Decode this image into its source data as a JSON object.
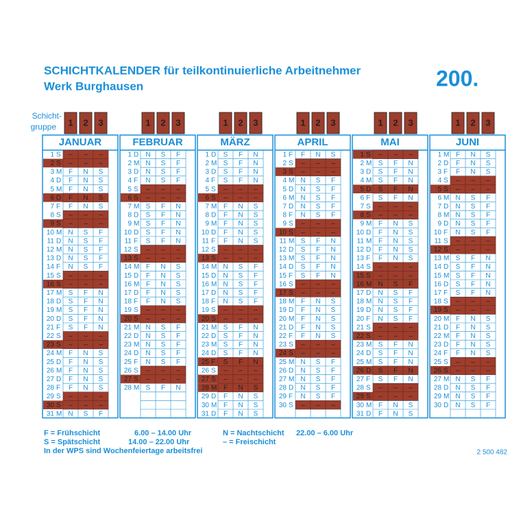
{
  "header": {
    "title": "SCHICHTKALENDER für teilkontinuierliche Arbeitnehmer",
    "subtitle": "Werk Burghausen",
    "year": "200.",
    "group_label": [
      "Schicht-",
      "gruppe"
    ],
    "groups": [
      "1",
      "2",
      "3"
    ]
  },
  "months": [
    {
      "name": "JANUAR",
      "rows": [
        [
          "1",
          "S",
          "–",
          "–",
          "–"
        ],
        [
          "2",
          "S",
          "–",
          "–",
          "–",
          true
        ],
        [
          "3",
          "M",
          "F",
          "N",
          "S"
        ],
        [
          "4",
          "D",
          "F",
          "N",
          "S"
        ],
        [
          "5",
          "M",
          "F",
          "N",
          "S"
        ],
        [
          "6",
          "D",
          "F",
          "N",
          "S",
          true
        ],
        [
          "7",
          "F",
          "F",
          "N",
          "S"
        ],
        [
          "8",
          "S",
          "–",
          "–",
          "–"
        ],
        [
          "9",
          "S",
          "–",
          "–",
          "–",
          true
        ],
        [
          "10",
          "M",
          "N",
          "S",
          "F"
        ],
        [
          "11",
          "D",
          "N",
          "S",
          "F"
        ],
        [
          "12",
          "M",
          "N",
          "S",
          "F"
        ],
        [
          "13",
          "D",
          "N",
          "S",
          "F"
        ],
        [
          "14",
          "F",
          "N",
          "S",
          "F"
        ],
        [
          "15",
          "S",
          "–",
          "–",
          "–"
        ],
        [
          "16",
          "S",
          "–",
          "–",
          "–",
          true
        ],
        [
          "17",
          "M",
          "S",
          "F",
          "N"
        ],
        [
          "18",
          "D",
          "S",
          "F",
          "N"
        ],
        [
          "19",
          "M",
          "S",
          "F",
          "N"
        ],
        [
          "20",
          "D",
          "S",
          "F",
          "N"
        ],
        [
          "21",
          "F",
          "S",
          "F",
          "N"
        ],
        [
          "22",
          "S",
          "–",
          "–",
          "–"
        ],
        [
          "23",
          "S",
          "–",
          "–",
          "–",
          true
        ],
        [
          "24",
          "M",
          "F",
          "N",
          "S"
        ],
        [
          "25",
          "D",
          "F",
          "N",
          "S"
        ],
        [
          "26",
          "M",
          "F",
          "N",
          "S"
        ],
        [
          "27",
          "D",
          "F",
          "N",
          "S"
        ],
        [
          "28",
          "F",
          "F",
          "N",
          "S"
        ],
        [
          "29",
          "S",
          "–",
          "–",
          "–"
        ],
        [
          "30",
          "S",
          "–",
          "–",
          "–",
          true
        ],
        [
          "31",
          "M",
          "N",
          "S",
          "F"
        ]
      ]
    },
    {
      "name": "FEBRUAR",
      "rows": [
        [
          "1",
          "D",
          "N",
          "S",
          "F"
        ],
        [
          "2",
          "M",
          "N",
          "S",
          "F"
        ],
        [
          "3",
          "D",
          "N",
          "S",
          "F"
        ],
        [
          "4",
          "F",
          "N",
          "S",
          "F"
        ],
        [
          "5",
          "S",
          "–",
          "–",
          "–"
        ],
        [
          "6",
          "S",
          "–",
          "–",
          "–",
          true
        ],
        [
          "7",
          "M",
          "S",
          "F",
          "N"
        ],
        [
          "8",
          "D",
          "S",
          "F",
          "N"
        ],
        [
          "9",
          "M",
          "S",
          "F",
          "N"
        ],
        [
          "10",
          "D",
          "S",
          "F",
          "N"
        ],
        [
          "11",
          "F",
          "S",
          "F",
          "N"
        ],
        [
          "12",
          "S",
          "–",
          "–",
          "–"
        ],
        [
          "13",
          "S",
          "–",
          "–",
          "–",
          true
        ],
        [
          "14",
          "M",
          "F",
          "N",
          "S"
        ],
        [
          "15",
          "D",
          "F",
          "N",
          "S"
        ],
        [
          "16",
          "M",
          "F",
          "N",
          "S"
        ],
        [
          "17",
          "D",
          "F",
          "N",
          "S"
        ],
        [
          "18",
          "F",
          "F",
          "N",
          "S"
        ],
        [
          "19",
          "S",
          "–",
          "–",
          "–"
        ],
        [
          "20",
          "S",
          "–",
          "–",
          "–",
          true
        ],
        [
          "21",
          "M",
          "N",
          "S",
          "F"
        ],
        [
          "22",
          "D",
          "N",
          "S",
          "F"
        ],
        [
          "23",
          "M",
          "N",
          "S",
          "F"
        ],
        [
          "24",
          "D",
          "N",
          "S",
          "F"
        ],
        [
          "25",
          "F",
          "N",
          "S",
          "F"
        ],
        [
          "26",
          "S",
          "–",
          "–",
          "–"
        ],
        [
          "27",
          "S",
          "–",
          "–",
          "–",
          true
        ],
        [
          "28",
          "M",
          "S",
          "F",
          "N"
        ]
      ]
    },
    {
      "name": "MÄRZ",
      "rows": [
        [
          "1",
          "D",
          "S",
          "F",
          "N"
        ],
        [
          "2",
          "M",
          "S",
          "F",
          "N"
        ],
        [
          "3",
          "D",
          "S",
          "F",
          "N"
        ],
        [
          "4",
          "F",
          "S",
          "F",
          "N"
        ],
        [
          "5",
          "S",
          "–",
          "–",
          "–"
        ],
        [
          "6",
          "S",
          "–",
          "–",
          "–",
          true
        ],
        [
          "7",
          "M",
          "F",
          "N",
          "S"
        ],
        [
          "8",
          "D",
          "F",
          "N",
          "S"
        ],
        [
          "9",
          "M",
          "F",
          "N",
          "S"
        ],
        [
          "10",
          "D",
          "F",
          "N",
          "S"
        ],
        [
          "11",
          "F",
          "F",
          "N",
          "S"
        ],
        [
          "12",
          "S",
          "–",
          "–",
          "–"
        ],
        [
          "13",
          "S",
          "–",
          "–",
          "–",
          true
        ],
        [
          "14",
          "M",
          "N",
          "S",
          "F"
        ],
        [
          "15",
          "D",
          "N",
          "S",
          "F"
        ],
        [
          "16",
          "M",
          "N",
          "S",
          "F"
        ],
        [
          "17",
          "D",
          "N",
          "S",
          "F"
        ],
        [
          "18",
          "F",
          "N",
          "S",
          "F"
        ],
        [
          "19",
          "S",
          "–",
          "–",
          "–"
        ],
        [
          "20",
          "S",
          "–",
          "–",
          "–",
          true
        ],
        [
          "21",
          "M",
          "S",
          "F",
          "N"
        ],
        [
          "22",
          "D",
          "S",
          "F",
          "N"
        ],
        [
          "23",
          "M",
          "S",
          "F",
          "N"
        ],
        [
          "24",
          "D",
          "S",
          "F",
          "N"
        ],
        [
          "25",
          "F",
          "S",
          "F",
          "N",
          true
        ],
        [
          "26",
          "S",
          "–",
          "–",
          "–"
        ],
        [
          "27",
          "S",
          "–",
          "–",
          "–",
          true
        ],
        [
          "28",
          "M",
          "F",
          "N",
          "S",
          true
        ],
        [
          "29",
          "D",
          "F",
          "N",
          "S"
        ],
        [
          "30",
          "M",
          "F",
          "N",
          "S"
        ],
        [
          "31",
          "D",
          "F",
          "N",
          "S"
        ]
      ]
    },
    {
      "name": "APRIL",
      "rows": [
        [
          "1",
          "F",
          "F",
          "N",
          "S"
        ],
        [
          "2",
          "S",
          "–",
          "–",
          "–"
        ],
        [
          "3",
          "S",
          "–",
          "–",
          "–",
          true
        ],
        [
          "4",
          "M",
          "N",
          "S",
          "F"
        ],
        [
          "5",
          "D",
          "N",
          "S",
          "F"
        ],
        [
          "6",
          "M",
          "N",
          "S",
          "F"
        ],
        [
          "7",
          "D",
          "N",
          "S",
          "F"
        ],
        [
          "8",
          "F",
          "N",
          "S",
          "F"
        ],
        [
          "9",
          "S",
          "–",
          "–",
          "–"
        ],
        [
          "10",
          "S",
          "–",
          "–",
          "–",
          true
        ],
        [
          "11",
          "M",
          "S",
          "F",
          "N"
        ],
        [
          "12",
          "D",
          "S",
          "F",
          "N"
        ],
        [
          "13",
          "M",
          "S",
          "F",
          "N"
        ],
        [
          "14",
          "D",
          "S",
          "F",
          "N"
        ],
        [
          "15",
          "F",
          "S",
          "F",
          "N"
        ],
        [
          "16",
          "S",
          "–",
          "–",
          "–"
        ],
        [
          "17",
          "S",
          "–",
          "–",
          "–",
          true
        ],
        [
          "18",
          "M",
          "F",
          "N",
          "S"
        ],
        [
          "19",
          "D",
          "F",
          "N",
          "S"
        ],
        [
          "20",
          "M",
          "F",
          "N",
          "S"
        ],
        [
          "21",
          "D",
          "F",
          "N",
          "S"
        ],
        [
          "22",
          "F",
          "F",
          "N",
          "S"
        ],
        [
          "23",
          "S",
          "–",
          "–",
          "–"
        ],
        [
          "24",
          "S",
          "–",
          "–",
          "–",
          true
        ],
        [
          "25",
          "M",
          "N",
          "S",
          "F"
        ],
        [
          "26",
          "D",
          "N",
          "S",
          "F"
        ],
        [
          "27",
          "M",
          "N",
          "S",
          "F"
        ],
        [
          "28",
          "D",
          "N",
          "S",
          "F"
        ],
        [
          "29",
          "F",
          "N",
          "S",
          "F"
        ],
        [
          "30",
          "S",
          "–",
          "–",
          "–"
        ]
      ]
    },
    {
      "name": "MAI",
      "rows": [
        [
          "1",
          "S",
          "–",
          "–",
          "–",
          true
        ],
        [
          "2",
          "M",
          "S",
          "F",
          "N"
        ],
        [
          "3",
          "D",
          "S",
          "F",
          "N"
        ],
        [
          "4",
          "M",
          "S",
          "F",
          "N"
        ],
        [
          "5",
          "D",
          "S",
          "F",
          "N",
          true
        ],
        [
          "6",
          "F",
          "S",
          "F",
          "N"
        ],
        [
          "7",
          "S",
          "–",
          "–",
          "–"
        ],
        [
          "8",
          "S",
          "–",
          "–",
          "–",
          true
        ],
        [
          "9",
          "M",
          "F",
          "N",
          "S"
        ],
        [
          "10",
          "D",
          "F",
          "N",
          "S"
        ],
        [
          "11",
          "M",
          "F",
          "N",
          "S"
        ],
        [
          "12",
          "D",
          "F",
          "N",
          "S"
        ],
        [
          "13",
          "F",
          "F",
          "N",
          "S"
        ],
        [
          "14",
          "S",
          "–",
          "–",
          "–"
        ],
        [
          "15",
          "S",
          "–",
          "–",
          "–",
          true
        ],
        [
          "16",
          "M",
          "N",
          "S",
          "F",
          true
        ],
        [
          "17",
          "D",
          "N",
          "S",
          "F"
        ],
        [
          "18",
          "M",
          "N",
          "S",
          "F"
        ],
        [
          "19",
          "D",
          "N",
          "S",
          "F"
        ],
        [
          "20",
          "F",
          "N",
          "S",
          "F"
        ],
        [
          "21",
          "S",
          "–",
          "–",
          "–"
        ],
        [
          "22",
          "S",
          "–",
          "–",
          "–",
          true
        ],
        [
          "23",
          "M",
          "S",
          "F",
          "N"
        ],
        [
          "24",
          "D",
          "S",
          "F",
          "N"
        ],
        [
          "25",
          "M",
          "S",
          "F",
          "N"
        ],
        [
          "26",
          "D",
          "S",
          "F",
          "N",
          true
        ],
        [
          "27",
          "F",
          "S",
          "F",
          "N"
        ],
        [
          "28",
          "S",
          "–",
          "–",
          "–"
        ],
        [
          "29",
          "S",
          "–",
          "–",
          "–",
          true
        ],
        [
          "30",
          "M",
          "F",
          "N",
          "S"
        ],
        [
          "31",
          "D",
          "F",
          "N",
          "S"
        ]
      ]
    },
    {
      "name": "JUNI",
      "rows": [
        [
          "1",
          "M",
          "F",
          "N",
          "S"
        ],
        [
          "2",
          "D",
          "F",
          "N",
          "S"
        ],
        [
          "3",
          "F",
          "F",
          "N",
          "S"
        ],
        [
          "4",
          "S",
          "–",
          "–",
          "–"
        ],
        [
          "5",
          "S",
          "–",
          "–",
          "–",
          true
        ],
        [
          "6",
          "M",
          "N",
          "S",
          "F"
        ],
        [
          "7",
          "D",
          "N",
          "S",
          "F"
        ],
        [
          "8",
          "M",
          "N",
          "S",
          "F"
        ],
        [
          "9",
          "D",
          "N",
          "S",
          "F"
        ],
        [
          "10",
          "F",
          "N",
          "S",
          "F"
        ],
        [
          "11",
          "S",
          "–",
          "–",
          "–"
        ],
        [
          "12",
          "S",
          "–",
          "–",
          "–",
          true
        ],
        [
          "13",
          "M",
          "S",
          "F",
          "N"
        ],
        [
          "14",
          "D",
          "S",
          "F",
          "N"
        ],
        [
          "15",
          "M",
          "S",
          "F",
          "N"
        ],
        [
          "16",
          "D",
          "S",
          "F",
          "N"
        ],
        [
          "17",
          "F",
          "S",
          "F",
          "N"
        ],
        [
          "18",
          "S",
          "–",
          "–",
          "–"
        ],
        [
          "19",
          "S",
          "–",
          "–",
          "–",
          true
        ],
        [
          "20",
          "M",
          "F",
          "N",
          "S"
        ],
        [
          "21",
          "D",
          "F",
          "N",
          "S"
        ],
        [
          "22",
          "M",
          "F",
          "N",
          "S"
        ],
        [
          "23",
          "D",
          "F",
          "N",
          "S"
        ],
        [
          "24",
          "F",
          "F",
          "N",
          "S"
        ],
        [
          "25",
          "S",
          "–",
          "–",
          "–"
        ],
        [
          "26",
          "S",
          "–",
          "–",
          "–",
          true
        ],
        [
          "27",
          "M",
          "N",
          "S",
          "F"
        ],
        [
          "28",
          "D",
          "N",
          "S",
          "F"
        ],
        [
          "29",
          "M",
          "N",
          "S",
          "F"
        ],
        [
          "30",
          "D",
          "N",
          "S",
          "F"
        ]
      ]
    }
  ],
  "legend": {
    "f": "F = Frühschicht",
    "f_time": "6.00 – 14.00 Uhr",
    "n": "N = Nachtschicht",
    "n_time": "22.00 – 6.00 Uhr",
    "s": "S = Spätschicht",
    "s_time": "14.00 – 22.00 Uhr",
    "free": "– = Freischicht",
    "note": "In der WPS sind Wochenfeiertage arbeitsfrei"
  },
  "code": "2 500 482"
}
